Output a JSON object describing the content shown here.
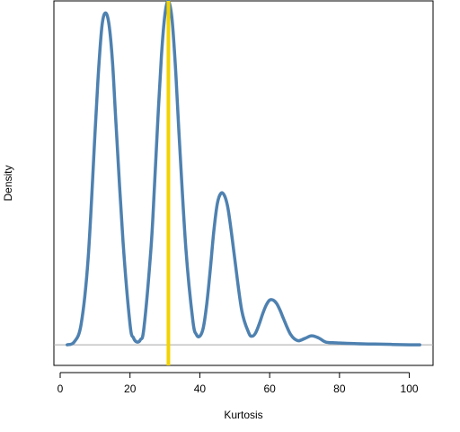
{
  "chart_data": {
    "type": "line",
    "title": "",
    "xlabel": "Kurtosis",
    "ylabel": "Density",
    "xlim": [
      -1.8,
      106.8
    ],
    "ylim": [
      -0.06,
      1.0
    ],
    "x_ticks": [
      0,
      20,
      40,
      60,
      80,
      100
    ],
    "x_tick_labels": [
      "0",
      "20",
      "40",
      "60",
      "80",
      "100"
    ],
    "y_ticks_shown": false,
    "grid": false,
    "baseline_y": 0,
    "reference_line": {
      "x": 31,
      "color": "#F2D200"
    },
    "series": [
      {
        "color": "#4E81B0",
        "x": [
          2,
          4,
          6,
          8,
          10,
          11,
          12,
          13,
          14,
          15,
          16,
          18,
          20,
          21,
          22,
          23,
          24,
          26,
          27,
          28,
          29,
          30,
          31,
          32,
          33,
          34,
          36,
          38,
          39,
          40,
          41,
          42,
          43,
          44,
          45,
          46,
          47,
          48,
          49,
          50,
          52,
          54,
          55,
          56,
          57,
          58,
          59,
          60,
          61,
          62,
          63,
          64,
          66,
          68,
          70,
          72,
          74,
          76,
          78,
          80,
          85,
          90,
          95,
          100,
          103
        ],
        "y": [
          0.0,
          0.008,
          0.06,
          0.25,
          0.62,
          0.8,
          0.93,
          0.965,
          0.93,
          0.82,
          0.64,
          0.3,
          0.06,
          0.02,
          0.008,
          0.015,
          0.05,
          0.28,
          0.46,
          0.66,
          0.84,
          0.96,
          1.0,
          0.95,
          0.81,
          0.62,
          0.28,
          0.07,
          0.03,
          0.025,
          0.05,
          0.12,
          0.22,
          0.33,
          0.41,
          0.44,
          0.435,
          0.4,
          0.33,
          0.25,
          0.1,
          0.035,
          0.025,
          0.035,
          0.06,
          0.09,
          0.115,
          0.13,
          0.13,
          0.12,
          0.1,
          0.075,
          0.03,
          0.012,
          0.018,
          0.026,
          0.02,
          0.008,
          0.006,
          0.005,
          0.003,
          0.002,
          0.001,
          0.0,
          0.0
        ]
      }
    ]
  }
}
